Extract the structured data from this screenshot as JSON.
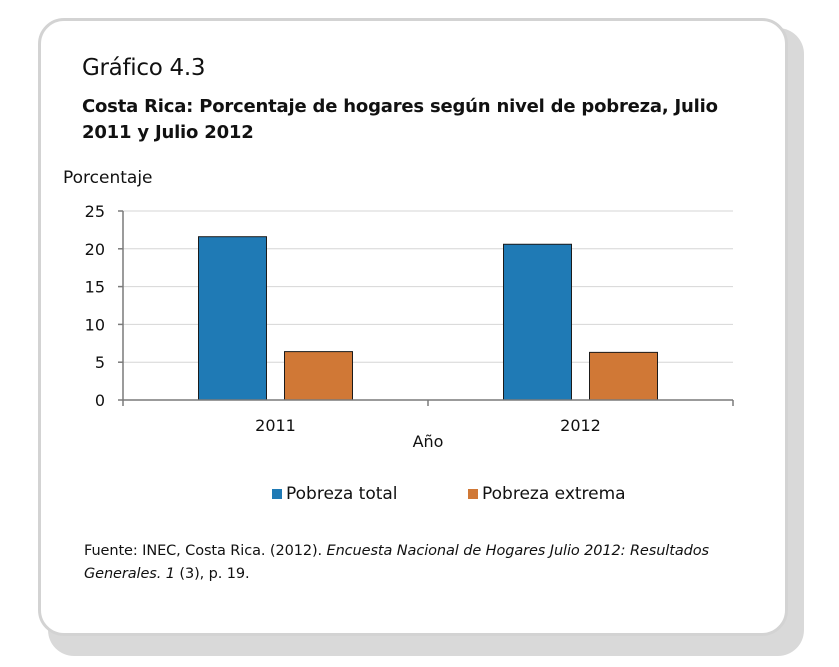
{
  "figure": {
    "label": "Gráfico 4.3",
    "title": "Costa Rica: Porcentaje de hogares según nivel de pobreza, Julio 2011 y Julio 2012"
  },
  "chart_data": {
    "type": "bar",
    "categories": [
      "2011",
      "2012"
    ],
    "series": [
      {
        "name": "Pobreza total",
        "color": "#1f7ab5",
        "values": [
          21.6,
          20.6
        ]
      },
      {
        "name": "Pobreza extrema",
        "color": "#d07836",
        "values": [
          6.4,
          6.3
        ]
      }
    ],
    "xlabel": "Año",
    "ylabel": "Porcentaje",
    "ylim": [
      0,
      25
    ],
    "yticks": [
      "0",
      "5",
      "10",
      "15",
      "20",
      "25"
    ],
    "grid": true,
    "legend": "bottom"
  },
  "source": {
    "prefix": "Fuente: INEC, Costa Rica. (2012). ",
    "italic": "Encuesta Nacional de Hogares Julio 2012: Resultados Generales. 1",
    "suffix": " (3), p. 19."
  }
}
